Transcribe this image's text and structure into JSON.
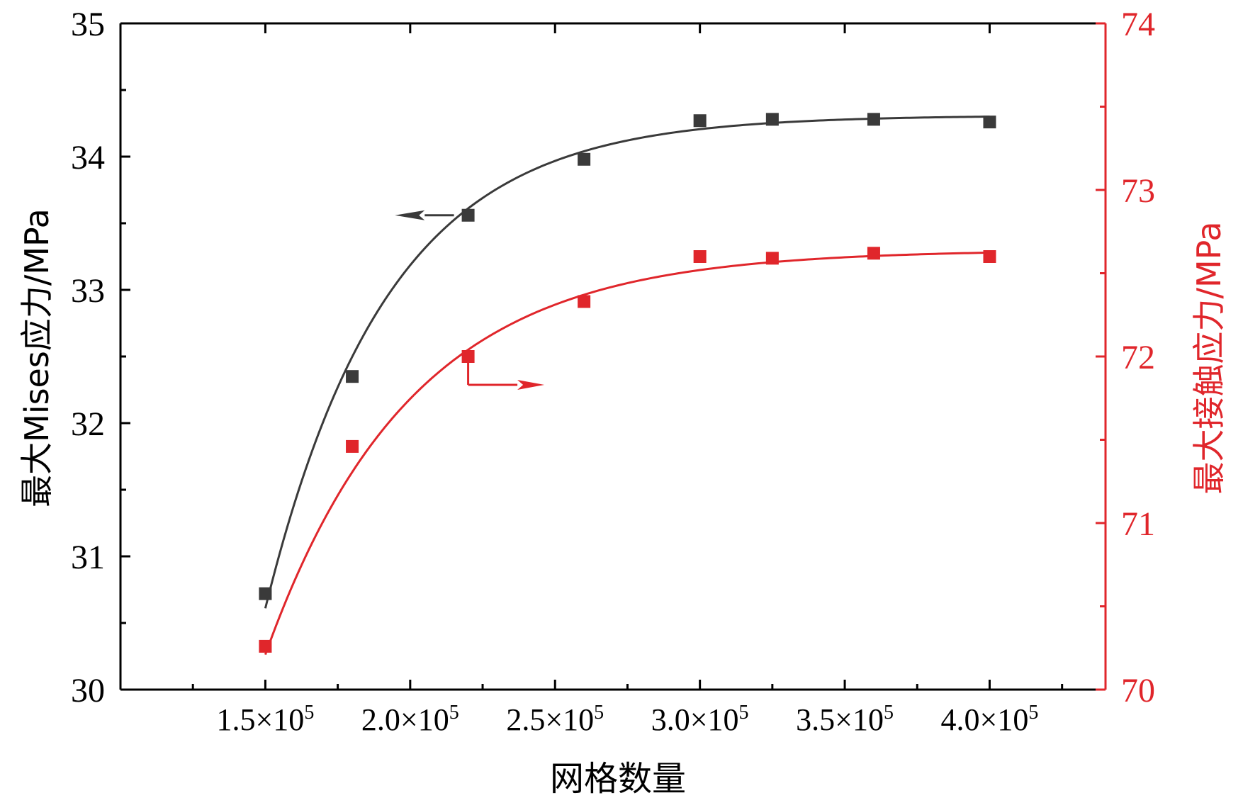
{
  "chart_data": {
    "type": "scatter",
    "xlabel": "网格数量",
    "ylabel_left": "最大Mises应力/MPa",
    "ylabel_right": "最大接触应力/MPa",
    "xlim": [
      100000,
      440000
    ],
    "ylim_left": [
      30,
      35
    ],
    "ylim_right": [
      70,
      74
    ],
    "x_ticks": [
      150000,
      200000,
      250000,
      300000,
      350000,
      400000
    ],
    "x_tick_labels": [
      {
        "base": "1.5×10",
        "exp": "5"
      },
      {
        "base": "2.0×10",
        "exp": "5"
      },
      {
        "base": "2.5×10",
        "exp": "5"
      },
      {
        "base": "3.0×10",
        "exp": "5"
      },
      {
        "base": "3.5×10",
        "exp": "5"
      },
      {
        "base": "4.0×10",
        "exp": "5"
      }
    ],
    "y_left_ticks": [
      "30",
      "31",
      "32",
      "33",
      "34",
      "35"
    ],
    "y_right_ticks": [
      "70",
      "71",
      "72",
      "73",
      "74"
    ],
    "grid": false,
    "colors": {
      "left_series": "#3a3a3a",
      "right_series": "#e0262b",
      "axis": "#000000"
    },
    "series": [
      {
        "axis": "left",
        "x": [
          150000,
          180000,
          220000,
          260000,
          300000,
          325000,
          360000,
          400000
        ],
        "values": [
          30.72,
          32.35,
          33.56,
          33.98,
          34.27,
          34.28,
          34.28,
          34.26
        ],
        "fit": {
          "asymptote": 34.31,
          "amplitude": 3.7,
          "x0": 150000,
          "scale": 42000
        }
      },
      {
        "axis": "right",
        "x": [
          150000,
          180000,
          220000,
          260000,
          300000,
          325000,
          360000,
          400000
        ],
        "values": [
          70.26,
          71.46,
          72.0,
          72.33,
          72.6,
          72.59,
          72.62,
          72.6
        ],
        "fit": {
          "asymptote": 72.64,
          "amplitude": 2.43,
          "x0": 150000,
          "scale": 50000
        }
      }
    ],
    "annotations": [
      {
        "type": "arrow",
        "direction": "left",
        "target_axis": "left"
      },
      {
        "type": "arrow",
        "direction": "right",
        "target_axis": "right"
      }
    ]
  }
}
